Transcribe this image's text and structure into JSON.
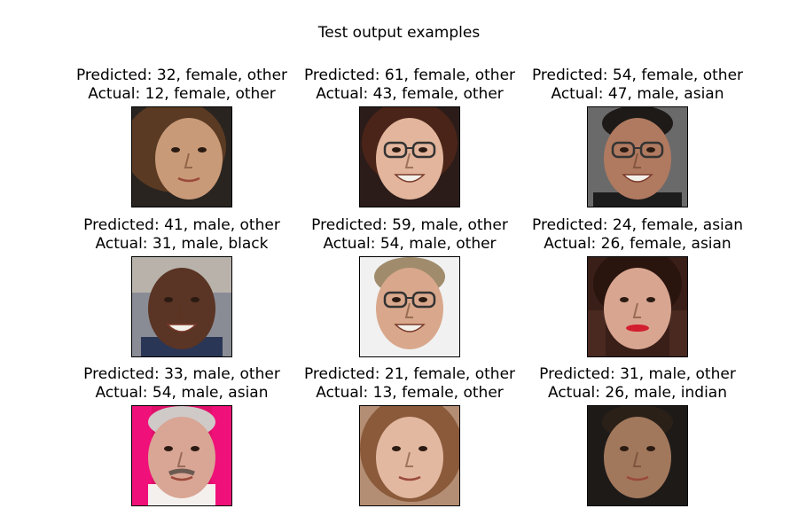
{
  "figure": {
    "title": "Test output examples",
    "examples": [
      {
        "predicted": "Predicted: 32, female, other",
        "actual": "Actual: 12, female, other",
        "photo": {
          "bg": "#2a2420",
          "skin": "#c99a78",
          "hair": "#5a3a22",
          "kind": "girl-side"
        }
      },
      {
        "predicted": "Predicted: 61, female, other",
        "actual": "Actual: 43, female, other",
        "photo": {
          "bg": "#2b1c1a",
          "skin": "#e2b59c",
          "hair": "#4a2418",
          "kind": "woman-glasses"
        }
      },
      {
        "predicted": "Predicted: 54, female, other",
        "actual": "Actual: 47, male, asian",
        "photo": {
          "bg": "#6b6a6a",
          "skin": "#b07a60",
          "hair": "#1e1a18",
          "kind": "man-glasses"
        }
      },
      {
        "predicted": "Predicted: 41, male, other",
        "actual": "Actual: 31, male, black",
        "photo": {
          "bg": "#8a8c95",
          "skin": "#5a3424",
          "hair": "#3a2218",
          "kind": "man-bald"
        }
      },
      {
        "predicted": "Predicted: 59, male, other",
        "actual": "Actual: 54, male, other",
        "photo": {
          "bg": "#f1f1f1",
          "skin": "#d9a88c",
          "hair": "#a08c6c",
          "kind": "man-glasses-old"
        }
      },
      {
        "predicted": "Predicted: 24, female, asian",
        "actual": "Actual: 26, female, asian",
        "photo": {
          "bg": "#3a1e18",
          "skin": "#d8a590",
          "hair": "#2a140e",
          "kind": "woman-blur"
        }
      },
      {
        "predicted": "Predicted: 33, male, other",
        "actual": "Actual: 54, male, asian",
        "photo": {
          "bg": "#e0106a",
          "skin": "#d9a594",
          "hair": "#cfcac8",
          "kind": "man-mustache"
        }
      },
      {
        "predicted": "Predicted: 21, female, other",
        "actual": "Actual: 13, female, other",
        "photo": {
          "bg": "#b38e74",
          "skin": "#e3b8a0",
          "hair": "#8a5a3a",
          "kind": "girl-front"
        }
      },
      {
        "predicted": "Predicted: 31, male, other",
        "actual": "Actual: 26, male, indian",
        "photo": {
          "bg": "#1e1a18",
          "skin": "#a2785c",
          "hair": "#2a2018",
          "kind": "man-smirk"
        }
      }
    ]
  }
}
